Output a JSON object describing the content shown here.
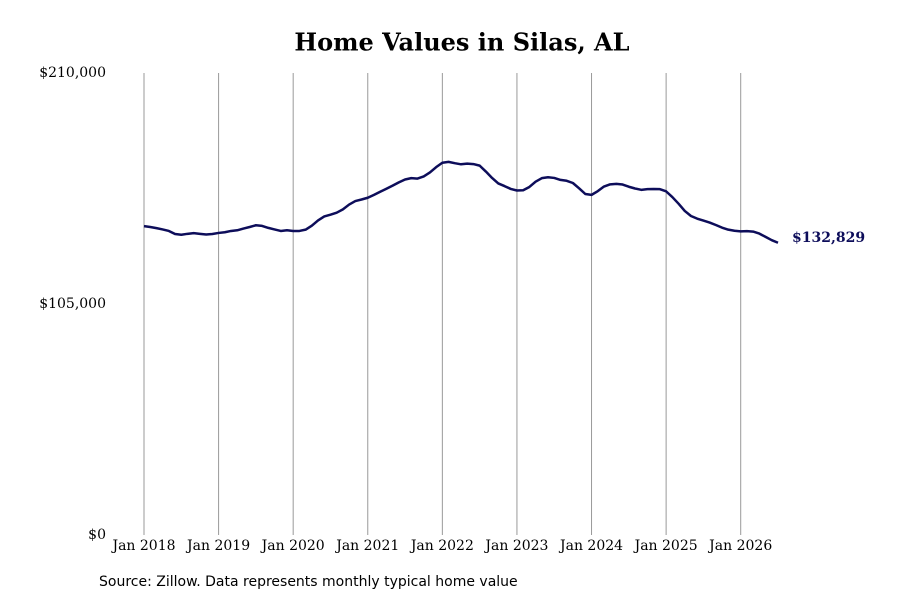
{
  "chart_data": {
    "type": "line",
    "title": "Home Values in Silas, AL",
    "source": "Source: Zillow. Data represents monthly typical home value",
    "x": [
      "2018-01",
      "2018-02",
      "2018-03",
      "2018-04",
      "2018-05",
      "2018-06",
      "2018-07",
      "2018-08",
      "2018-09",
      "2018-10",
      "2018-11",
      "2018-12",
      "2019-01",
      "2019-02",
      "2019-03",
      "2019-04",
      "2019-05",
      "2019-06",
      "2019-07",
      "2019-08",
      "2019-09",
      "2019-10",
      "2019-11",
      "2019-12",
      "2020-01",
      "2020-02",
      "2020-03",
      "2020-04",
      "2020-05",
      "2020-06",
      "2020-07",
      "2020-08",
      "2020-09",
      "2020-10",
      "2020-11",
      "2020-12",
      "2021-01",
      "2021-02",
      "2021-03",
      "2021-04",
      "2021-05",
      "2021-06",
      "2021-07",
      "2021-08",
      "2021-09",
      "2021-10",
      "2021-11",
      "2021-12",
      "2022-01",
      "2022-02",
      "2022-03",
      "2022-04",
      "2022-05",
      "2022-06",
      "2022-07",
      "2022-08",
      "2022-09",
      "2022-10",
      "2022-11",
      "2022-12",
      "2023-01",
      "2023-02",
      "2023-03",
      "2023-04",
      "2023-05",
      "2023-06",
      "2023-07",
      "2023-08",
      "2023-09",
      "2023-10",
      "2023-11",
      "2023-12",
      "2024-01",
      "2024-02",
      "2024-03",
      "2024-04",
      "2024-05",
      "2024-06",
      "2024-07",
      "2024-08",
      "2024-09",
      "2024-10",
      "2024-11",
      "2024-12",
      "2025-01",
      "2025-02",
      "2025-03",
      "2025-04",
      "2025-05",
      "2025-06",
      "2025-07",
      "2025-08",
      "2025-09",
      "2025-10",
      "2025-11",
      "2025-12",
      "2026-01",
      "2026-02",
      "2026-03",
      "2026-04",
      "2026-05",
      "2026-06",
      "2026-07"
    ],
    "series": [
      {
        "name": "Home value",
        "color": "#0d0d5a",
        "values": [
          140400,
          140000,
          139500,
          138900,
          138200,
          136800,
          136500,
          136900,
          137200,
          136900,
          136600,
          136800,
          137300,
          137600,
          138200,
          138500,
          139300,
          140000,
          140800,
          140500,
          139600,
          138900,
          138200,
          138500,
          138200,
          138200,
          138800,
          140600,
          143000,
          144800,
          145600,
          146500,
          148000,
          150200,
          151800,
          152500,
          153300,
          154600,
          156000,
          157400,
          158800,
          160300,
          161600,
          162200,
          162000,
          163000,
          164800,
          167200,
          169200,
          169600,
          169000,
          168500,
          168800,
          168600,
          167900,
          165200,
          162300,
          159800,
          158600,
          157300,
          156600,
          156700,
          158200,
          160600,
          162200,
          162600,
          162300,
          161400,
          161000,
          160000,
          157600,
          155000,
          154600,
          156300,
          158400,
          159400,
          159600,
          159300,
          158300,
          157500,
          156900,
          157200,
          157300,
          157200,
          156200,
          153600,
          150600,
          147300,
          145000,
          143800,
          142900,
          142000,
          140900,
          139700,
          138800,
          138300,
          138000,
          138100,
          137900,
          137000,
          135500,
          134000,
          132829
        ],
        "value_labels": [
          null,
          null,
          null,
          null,
          null,
          null,
          null,
          null,
          null,
          null,
          null,
          null,
          null,
          null,
          null,
          null,
          null,
          null,
          null,
          null,
          null,
          null,
          null,
          null,
          null,
          null,
          null,
          null,
          null,
          null,
          null,
          null,
          null,
          null,
          null,
          null,
          null,
          null,
          null,
          null,
          null,
          null,
          null,
          null,
          null,
          null,
          null,
          null,
          null,
          null,
          null,
          null,
          null,
          null,
          null,
          null,
          null,
          null,
          null,
          null,
          null,
          null,
          null,
          null,
          null,
          null,
          null,
          null,
          null,
          null,
          null,
          null,
          null,
          null,
          null,
          null,
          null,
          null,
          null,
          null,
          null,
          null,
          null,
          null,
          null,
          null,
          null,
          null,
          null,
          null,
          null,
          null,
          null,
          null,
          null,
          null,
          null,
          null,
          null,
          null,
          null,
          null,
          "$132,829"
        ]
      }
    ],
    "xlim": [
      "2018-01",
      "2026-07"
    ],
    "xticks": [
      {
        "value": "2018-01",
        "label": "Jan 2018"
      },
      {
        "value": "2019-01",
        "label": "Jan 2019"
      },
      {
        "value": "2020-01",
        "label": "Jan 2020"
      },
      {
        "value": "2021-01",
        "label": "Jan 2021"
      },
      {
        "value": "2022-01",
        "label": "Jan 2022"
      },
      {
        "value": "2023-01",
        "label": "Jan 2023"
      },
      {
        "value": "2024-01",
        "label": "Jan 2024"
      },
      {
        "value": "2025-01",
        "label": "Jan 2025"
      },
      {
        "value": "2026-01",
        "label": "Jan 2026"
      }
    ],
    "ylim": [
      0,
      210000
    ],
    "yticks": [
      {
        "value": 0,
        "label": "$0"
      },
      {
        "value": 105000,
        "label": "$105,000"
      },
      {
        "value": 210000,
        "label": "$210,000"
      }
    ],
    "grid": "x"
  }
}
